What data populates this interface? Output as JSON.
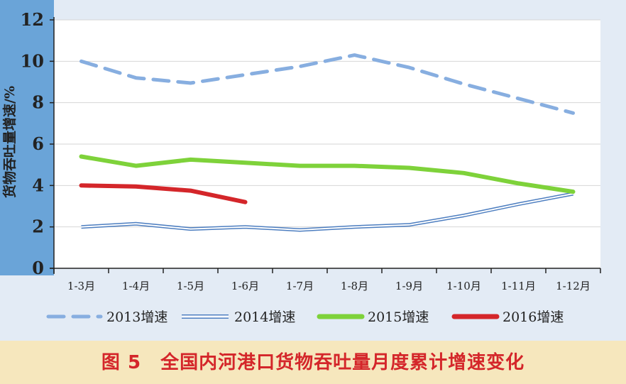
{
  "caption": "图 5　全国内河港口货物吞吐量月度累计增速变化",
  "chart_data": {
    "type": "line",
    "title": "",
    "xlabel": "",
    "ylabel": "货物吞吐量增速/%",
    "ylim": [
      0,
      12
    ],
    "yticks": [
      0,
      2,
      4,
      6,
      8,
      10,
      12
    ],
    "grid": true,
    "legend_position": "bottom",
    "categories": [
      "1-3月",
      "1-4月",
      "1-5月",
      "1-6月",
      "1-7月",
      "1-8月",
      "1-9月",
      "1-10月",
      "1-11月",
      "1-12月"
    ],
    "series": [
      {
        "name": "2013增速",
        "style": "dashed",
        "color": "#87aee0",
        "values": [
          10.0,
          9.2,
          8.95,
          9.35,
          9.75,
          10.3,
          9.7,
          8.9,
          8.2,
          7.5
        ]
      },
      {
        "name": "2014增速",
        "style": "double",
        "color": "#4d7ec0",
        "values": [
          2.0,
          2.15,
          1.9,
          2.0,
          1.85,
          2.0,
          2.1,
          2.55,
          3.1,
          3.6
        ]
      },
      {
        "name": "2015增速",
        "style": "solid",
        "color": "#7ed23a",
        "values": [
          5.4,
          4.95,
          5.25,
          5.1,
          4.95,
          4.95,
          4.85,
          4.6,
          4.1,
          3.7
        ]
      },
      {
        "name": "2016增速",
        "style": "solid",
        "color": "#d4262a",
        "values": [
          4.0,
          3.95,
          3.75,
          3.2,
          null,
          null,
          null,
          null,
          null,
          null
        ]
      }
    ]
  }
}
